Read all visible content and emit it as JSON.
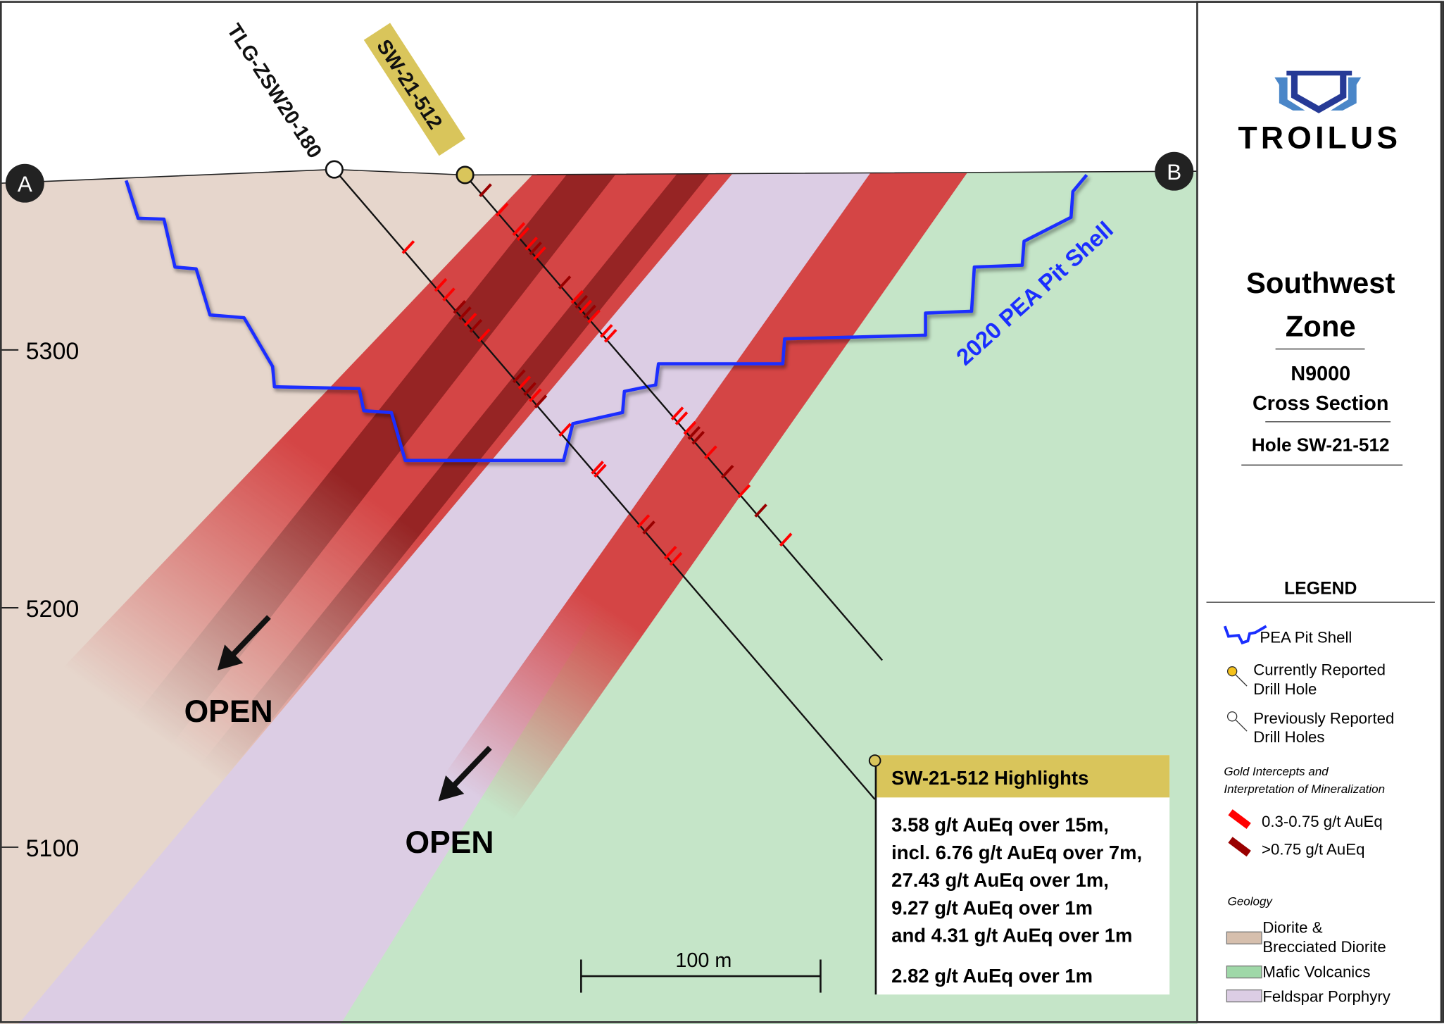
{
  "section": {
    "endpoint_a": "A",
    "endpoint_b": "B",
    "elevation_ticks": [
      "5300",
      "5200",
      "5100"
    ],
    "pit_shell_label": "2020 PEA Pit Shell",
    "open_label_1": "OPEN",
    "open_label_2": "OPEN",
    "scale_bar_label": "100 m",
    "holes": {
      "previous": "TLG-ZSW20-180",
      "current": "SW-21-512"
    }
  },
  "highlights": {
    "title": "SW-21-512 Highlights",
    "lines": [
      "3.58 g/t AuEq over 15m,",
      "incl. 6.76 g/t AuEq over 7m,",
      "27.43 g/t AuEq over 1m,",
      "9.27 g/t AuEq over 1m",
      "and 4.31 g/t AuEq over 1m"
    ],
    "extra": "2.82 g/t AuEq over 1m"
  },
  "panel": {
    "logo_text": "TROILUS",
    "title_line1": "Southwest",
    "title_line2": "Zone",
    "subtitle_line1": "N9000",
    "subtitle_line2": "Cross Section",
    "hole": "Hole SW-21-512"
  },
  "legend": {
    "title": "LEGEND",
    "pit_shell": "PEA Pit Shell",
    "current_hole_1": "Currently Reported",
    "current_hole_2": "Drill Hole",
    "previous_holes_1": "Previously Reported",
    "previous_holes_2": "Drill Holes",
    "gold_heading_1": "Gold Intercepts and",
    "gold_heading_2": "Interpretation of Mineralization",
    "grade_low": "0.3-0.75 g/t AuEq",
    "grade_high": ">0.75 g/t AuEq",
    "geology_heading": "Geology",
    "diorite_1": "Diorite &",
    "diorite_2": "Brecciated Diorite",
    "mafic": "Mafic Volcanics",
    "porphyry": "Feldspar Porphyry"
  },
  "colors": {
    "diorite": "#e6d6cc",
    "mafic": "#c5e5c8",
    "porphyry": "#dccde4",
    "mineralization": "#d44545",
    "mineralization_dark": "#962424",
    "grade_low": "#ff0000",
    "grade_high": "#990000",
    "pit_shell": "#1a2eff",
    "current_hole": "#d9c55b",
    "logo_dark": "#263a96",
    "logo_light": "#4a86c8"
  }
}
